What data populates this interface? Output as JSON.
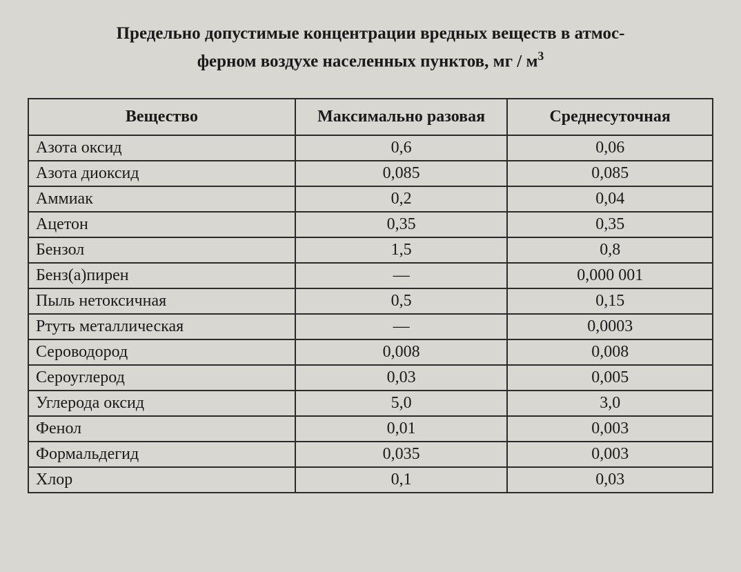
{
  "title_line1": "Предельно допустимые концентрации вредных веществ в атмос-",
  "title_line2_prefix": "ферном воздухе населенных пунктов, мг / м",
  "title_line2_sup": "3",
  "table": {
    "columns": [
      "Вещество",
      "Максимально разовая",
      "Среднесуточная"
    ],
    "rows": [
      [
        "Азота оксид",
        "0,6",
        "0,06"
      ],
      [
        "Азота диоксид",
        "0,085",
        "0,085"
      ],
      [
        "Аммиак",
        "0,2",
        "0,04"
      ],
      [
        "Ацетон",
        "0,35",
        "0,35"
      ],
      [
        "Бензол",
        "1,5",
        "0,8"
      ],
      [
        "Бенз(а)пирен",
        "—",
        "0,000 001"
      ],
      [
        "Пыль нетоксичная",
        "0,5",
        "0,15"
      ],
      [
        "Ртуть металлическая",
        "—",
        "0,0003"
      ],
      [
        "Сероводород",
        "0,008",
        "0,008"
      ],
      [
        "Сероуглерод",
        "0,03",
        "0,005"
      ],
      [
        "Углерода оксид",
        "5,0",
        "3,0"
      ],
      [
        "Фенол",
        "0,01",
        "0,003"
      ],
      [
        "Формальдегид",
        "0,035",
        "0,003"
      ],
      [
        "Хлор",
        "0,1",
        "0,03"
      ]
    ]
  },
  "styling": {
    "background_color": "#d8d7d2",
    "text_color": "#1a1a1a",
    "border_color": "#2a2a2a",
    "font_family": "Times New Roman",
    "title_fontsize": 25,
    "cell_fontsize": 24,
    "column_widths_pct": [
      39,
      31,
      30
    ]
  }
}
